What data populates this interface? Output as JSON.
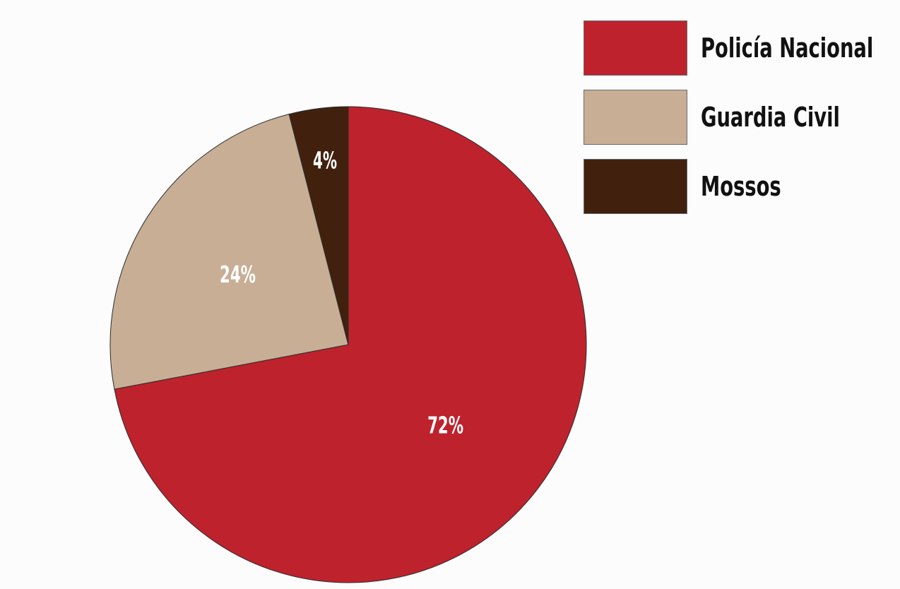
{
  "chart_data": {
    "type": "pie",
    "title": "",
    "categories": [
      "Policía Nacional",
      "Guardia Civil",
      "Mossos"
    ],
    "values": [
      72,
      24,
      4
    ],
    "value_labels": [
      "72%",
      "24%",
      "4%"
    ],
    "colors": [
      "#be222d",
      "#c7ae95",
      "#41210d"
    ],
    "legend_position": "top-right",
    "start": "12 o'clock",
    "direction": "clockwise"
  }
}
